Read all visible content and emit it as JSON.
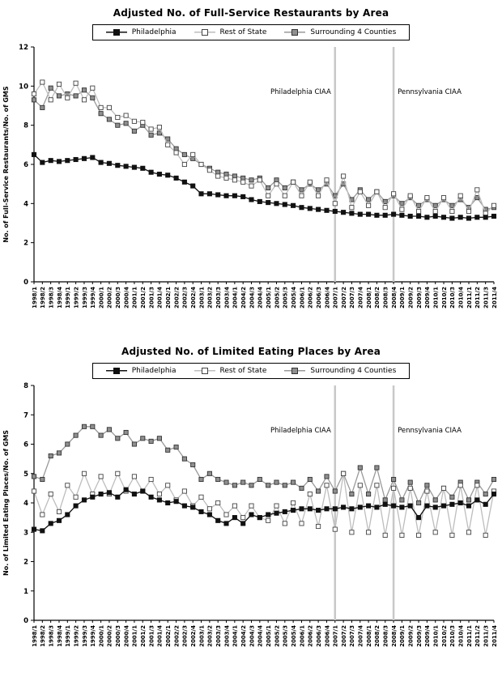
{
  "page": {
    "background": "#ffffff"
  },
  "chart_data": [
    {
      "type": "line",
      "title": "Adjusted No. of Full-Service Restaurants by Area",
      "ylabel": "No. of Full-Service Restaurants/No. of GMS",
      "xlabel": "",
      "ylim": [
        0,
        12
      ],
      "ytick_step": 2,
      "grid": false,
      "legend_position": "top",
      "categories": [
        "1998/1",
        "1998/2",
        "1998/3",
        "1998/4",
        "1999/1",
        "1999/2",
        "1999/3",
        "1999/4",
        "2000/1",
        "2000/2",
        "2000/3",
        "2000/4",
        "2001/1",
        "2001/2",
        "2001/3",
        "2001/4",
        "2002/1",
        "2002/2",
        "2002/3",
        "2002/4",
        "2003/1",
        "2003/2",
        "2003/3",
        "2003/4",
        "2004/1",
        "2004/2",
        "2004/3",
        "2004/4",
        "2005/1",
        "2005/2",
        "2005/3",
        "2005/4",
        "2006/1",
        "2006/2",
        "2006/3",
        "2006/4",
        "2007/1",
        "2007/2",
        "2007/3",
        "2007/4",
        "2008/1",
        "2008/2",
        "2008/3",
        "2008/4",
        "2009/1",
        "2009/2",
        "2009/3",
        "2009/4",
        "2010/1",
        "2010/2",
        "2010/3",
        "2010/4",
        "2011/1",
        "2011/2",
        "2011/3",
        "2011/4"
      ],
      "annotations": [
        {
          "label": "Philadelphia CIAA",
          "category": "2007/1",
          "side": "left",
          "color": "#c8c8c8"
        },
        {
          "label": "Pennsylvania CIAA",
          "category": "2008/4",
          "side": "right",
          "color": "#c8c8c8"
        }
      ],
      "series": [
        {
          "name": "Philadelphia",
          "line_color": "#111111",
          "marker_fill": "#111111",
          "marker_stroke": "#111111",
          "values": [
            6.5,
            6.1,
            6.2,
            6.15,
            6.2,
            6.25,
            6.3,
            6.35,
            6.1,
            6.05,
            5.95,
            5.9,
            5.85,
            5.8,
            5.6,
            5.5,
            5.45,
            5.3,
            5.1,
            4.9,
            4.5,
            4.5,
            4.45,
            4.4,
            4.4,
            4.35,
            4.2,
            4.1,
            4.05,
            4.0,
            3.95,
            3.9,
            3.8,
            3.75,
            3.7,
            3.65,
            3.6,
            3.55,
            3.5,
            3.45,
            3.45,
            3.4,
            3.4,
            3.45,
            3.4,
            3.35,
            3.35,
            3.3,
            3.35,
            3.3,
            3.25,
            3.3,
            3.25,
            3.3,
            3.3,
            3.35
          ]
        },
        {
          "name": "Rest of State",
          "line_color": "#bdbdbd",
          "marker_fill": "#ffffff",
          "marker_stroke": "#444444",
          "values": [
            9.6,
            10.2,
            9.3,
            10.1,
            9.4,
            10.15,
            9.3,
            9.9,
            8.9,
            8.9,
            8.4,
            8.5,
            8.2,
            8.15,
            7.8,
            7.9,
            7.0,
            6.6,
            6.0,
            6.5,
            6.0,
            5.7,
            5.4,
            5.3,
            5.2,
            5.1,
            4.9,
            5.2,
            4.4,
            5.0,
            4.4,
            5.1,
            4.4,
            5.1,
            4.4,
            5.2,
            4.0,
            5.4,
            3.8,
            4.6,
            3.9,
            4.6,
            3.8,
            4.5,
            3.7,
            4.4,
            3.6,
            4.3,
            3.6,
            4.3,
            3.6,
            4.4,
            3.6,
            4.7,
            3.5,
            3.9
          ]
        },
        {
          "name": "Surrounding 4 Counties",
          "line_color": "#9a9a9a",
          "marker_fill": "#8f8f8f",
          "marker_stroke": "#333333",
          "values": [
            9.3,
            8.9,
            9.9,
            9.5,
            9.6,
            9.5,
            9.8,
            9.4,
            8.6,
            8.3,
            8.0,
            8.1,
            7.7,
            8.0,
            7.5,
            7.6,
            7.3,
            6.8,
            6.5,
            6.3,
            6.0,
            5.8,
            5.6,
            5.5,
            5.4,
            5.3,
            5.2,
            5.3,
            4.8,
            5.2,
            4.8,
            5.1,
            4.7,
            5.0,
            4.7,
            5.0,
            4.4,
            5.0,
            4.2,
            4.7,
            4.2,
            4.6,
            4.1,
            4.4,
            4.0,
            4.3,
            3.9,
            4.2,
            3.9,
            4.2,
            3.9,
            4.2,
            3.8,
            4.3,
            3.7,
            3.8
          ]
        }
      ]
    },
    {
      "type": "line",
      "title": "Adjusted No. of Limited Eating Places by Area",
      "ylabel": "No. of Limited Eating Places/No. of GMS",
      "xlabel": "",
      "ylim": [
        0,
        8
      ],
      "ytick_step": 1,
      "grid": false,
      "legend_position": "top",
      "categories": [
        "1998/1",
        "1998/2",
        "1998/3",
        "1998/4",
        "1999/1",
        "1999/2",
        "1999/3",
        "1999/4",
        "2000/1",
        "2000/2",
        "2000/3",
        "2000/4",
        "2001/1",
        "2001/2",
        "2001/3",
        "2001/4",
        "2002/1",
        "2002/2",
        "2002/3",
        "2002/4",
        "2003/1",
        "2003/2",
        "2003/3",
        "2003/4",
        "2004/1",
        "2004/2",
        "2004/3",
        "2004/4",
        "2005/1",
        "2005/2",
        "2005/3",
        "2005/4",
        "2006/1",
        "2006/2",
        "2006/3",
        "2006/4",
        "2007/1",
        "2007/2",
        "2007/3",
        "2007/4",
        "2008/1",
        "2008/2",
        "2008/3",
        "2008/4",
        "2009/1",
        "2009/2",
        "2009/3",
        "2009/4",
        "2010/1",
        "2010/2",
        "2010/3",
        "2010/4",
        "2011/1",
        "2011/2",
        "2011/3",
        "2011/4"
      ],
      "annotations": [
        {
          "label": "Philadelphia CIAA",
          "category": "2007/1",
          "side": "left",
          "color": "#c8c8c8"
        },
        {
          "label": "Pennsylvania CIAA",
          "category": "2008/4",
          "side": "right",
          "color": "#c8c8c8"
        }
      ],
      "series": [
        {
          "name": "Philadelphia",
          "line_color": "#111111",
          "marker_fill": "#111111",
          "marker_stroke": "#111111",
          "values": [
            3.1,
            3.05,
            3.3,
            3.4,
            3.6,
            3.9,
            4.1,
            4.2,
            4.3,
            4.35,
            4.2,
            4.45,
            4.3,
            4.4,
            4.2,
            4.1,
            4.0,
            4.05,
            3.9,
            3.85,
            3.7,
            3.6,
            3.4,
            3.3,
            3.5,
            3.3,
            3.6,
            3.5,
            3.6,
            3.65,
            3.7,
            3.75,
            3.8,
            3.8,
            3.75,
            3.8,
            3.8,
            3.85,
            3.8,
            3.85,
            3.9,
            3.85,
            3.95,
            3.9,
            3.85,
            3.9,
            3.5,
            3.9,
            3.85,
            3.9,
            3.95,
            4.0,
            3.9,
            4.1,
            3.95,
            4.3
          ]
        },
        {
          "name": "Rest of State",
          "line_color": "#bdbdbd",
          "marker_fill": "#ffffff",
          "marker_stroke": "#444444",
          "values": [
            4.4,
            3.6,
            4.3,
            3.7,
            4.6,
            4.2,
            5.0,
            4.3,
            4.9,
            4.3,
            5.0,
            4.4,
            4.9,
            4.4,
            4.8,
            4.3,
            4.6,
            4.1,
            4.4,
            3.9,
            4.2,
            3.8,
            4.0,
            3.6,
            3.9,
            3.5,
            3.9,
            3.5,
            3.4,
            3.9,
            3.3,
            4.0,
            3.3,
            4.3,
            3.2,
            4.6,
            3.1,
            5.0,
            3.0,
            4.6,
            3.0,
            4.6,
            2.9,
            4.5,
            2.9,
            4.5,
            2.9,
            4.4,
            3.0,
            4.5,
            2.9,
            4.6,
            3.0,
            4.6,
            2.9,
            4.4
          ]
        },
        {
          "name": "Surrounding 4 Counties",
          "line_color": "#9a9a9a",
          "marker_fill": "#8f8f8f",
          "marker_stroke": "#333333",
          "values": [
            4.9,
            4.8,
            5.6,
            5.7,
            6.0,
            6.3,
            6.6,
            6.6,
            6.3,
            6.5,
            6.2,
            6.4,
            6.0,
            6.2,
            6.1,
            6.2,
            5.8,
            5.9,
            5.5,
            5.3,
            4.8,
            5.0,
            4.8,
            4.7,
            4.6,
            4.7,
            4.6,
            4.8,
            4.6,
            4.7,
            4.6,
            4.7,
            4.5,
            4.8,
            4.4,
            4.9,
            4.4,
            5.0,
            4.3,
            5.2,
            4.3,
            5.2,
            4.1,
            4.8,
            4.1,
            4.7,
            4.0,
            4.6,
            4.1,
            4.5,
            4.2,
            4.7,
            4.1,
            4.7,
            4.3,
            4.8
          ]
        }
      ]
    }
  ]
}
